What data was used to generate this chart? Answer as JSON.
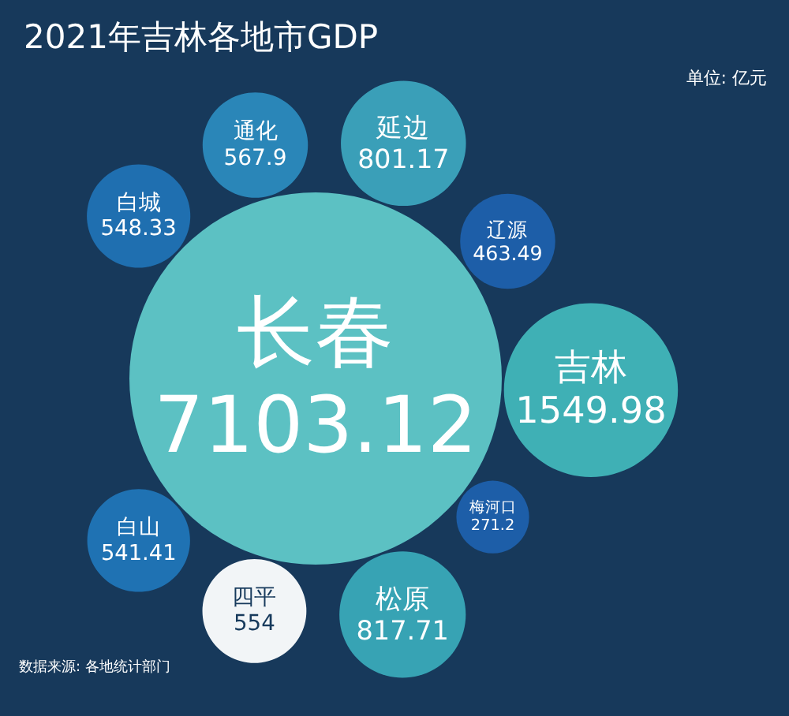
{
  "chart_data": {
    "type": "other",
    "title": "2021年吉林各地市GDP",
    "annotations": [
      "单位: 亿元",
      "数据来源: 各地统计部门"
    ],
    "categories": [
      "长春",
      "白城",
      "通化",
      "延边",
      "辽源",
      "吉林",
      "梅河口",
      "松原",
      "四平",
      "白山"
    ],
    "values": [
      7103.12,
      548.33,
      567.9,
      801.17,
      463.49,
      1549.98,
      271.2,
      817.71,
      554,
      541.41
    ],
    "data_labels": true,
    "colors": [
      "#5cc1c3",
      "#1f6fb0",
      "#2a86b8",
      "#3a9fb8",
      "#1d5ea8",
      "#3fb0b5",
      "#1d5ea8",
      "#37a3b4",
      "#f2f5f7",
      "#1f72b3"
    ]
  }
}
